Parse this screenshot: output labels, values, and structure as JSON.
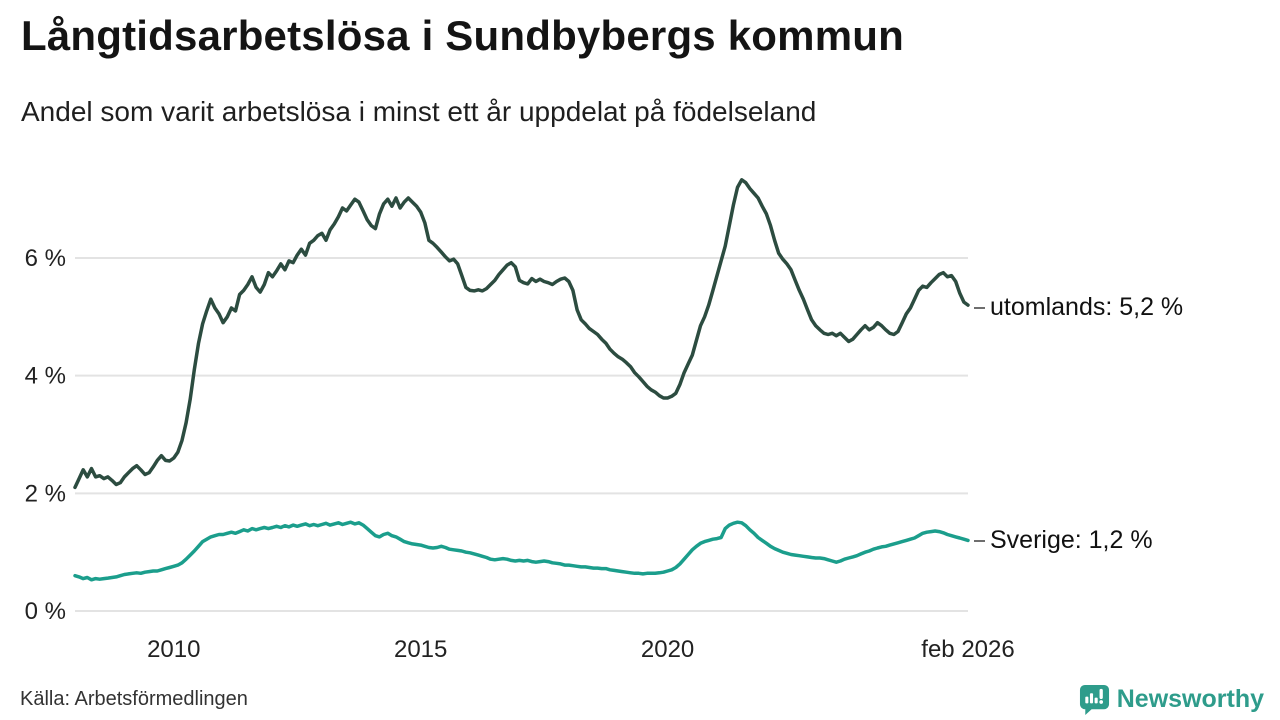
{
  "header": {
    "title": "Långtidsarbetslösa i Sundbybergs kommun",
    "subtitle": "Andel som varit arbetslösa i minst ett år uppdelat på födelseland"
  },
  "footer": {
    "source": "Källa: Arbetsförmedlingen",
    "brand": "Newsworthy"
  },
  "series_labels": {
    "utomlands": "utomlands: 5,2 %",
    "sverige": "Sverige: 1,2 %"
  },
  "colors": {
    "utomlands_line": "#2c4c40",
    "sverige_line": "#1b9e8c",
    "brand_teal": "#2e9c8b",
    "gridline": "#e3e3e3",
    "text": "#222222"
  },
  "chart_data": {
    "type": "line",
    "title": "Långtidsarbetslösa i Sundbybergs kommun",
    "subtitle": "Andel som varit arbetslösa i minst ett år uppdelat på födelseland",
    "source": "Källa: Arbetsförmedlingen",
    "x_range": [
      2008.0,
      2026.0833
    ],
    "ylim": [
      0,
      7.5
    ],
    "grid": "horizontal",
    "legend_position": "right-end-labels",
    "x_ticks": [
      {
        "label": "2010",
        "year": 2010
      },
      {
        "label": "2015",
        "year": 2015
      },
      {
        "label": "2020",
        "year": 2020
      },
      {
        "label": "feb 2026",
        "year": 2026.0833
      }
    ],
    "y_ticks": [
      {
        "label": "0 %",
        "value": 0
      },
      {
        "label": "2 %",
        "value": 2
      },
      {
        "label": "4 %",
        "value": 4
      },
      {
        "label": "6 %",
        "value": 6
      }
    ],
    "start_year": 2008,
    "points_per_year": 12,
    "series": [
      {
        "name": "utomlands",
        "color": "#2c4c40",
        "end_label": "utomlands: 5,2 %",
        "last_value": 5.2,
        "values": [
          2.1,
          2.25,
          2.4,
          2.28,
          2.42,
          2.28,
          2.3,
          2.25,
          2.28,
          2.22,
          2.15,
          2.18,
          2.28,
          2.35,
          2.42,
          2.47,
          2.4,
          2.32,
          2.35,
          2.45,
          2.56,
          2.64,
          2.56,
          2.55,
          2.6,
          2.7,
          2.9,
          3.2,
          3.6,
          4.1,
          4.55,
          4.88,
          5.1,
          5.3,
          5.15,
          5.05,
          4.9,
          5.0,
          5.15,
          5.1,
          5.38,
          5.45,
          5.55,
          5.68,
          5.5,
          5.42,
          5.55,
          5.75,
          5.68,
          5.78,
          5.9,
          5.8,
          5.95,
          5.92,
          6.05,
          6.15,
          6.05,
          6.25,
          6.3,
          6.38,
          6.42,
          6.3,
          6.48,
          6.58,
          6.7,
          6.85,
          6.8,
          6.9,
          7.0,
          6.95,
          6.8,
          6.65,
          6.55,
          6.5,
          6.75,
          6.92,
          7.0,
          6.88,
          7.02,
          6.85,
          6.95,
          7.02,
          6.95,
          6.88,
          6.78,
          6.6,
          6.3,
          6.25,
          6.18,
          6.1,
          6.02,
          5.95,
          5.98,
          5.9,
          5.7,
          5.5,
          5.45,
          5.44,
          5.46,
          5.44,
          5.48,
          5.55,
          5.62,
          5.72,
          5.8,
          5.88,
          5.92,
          5.85,
          5.62,
          5.58,
          5.56,
          5.65,
          5.6,
          5.64,
          5.6,
          5.58,
          5.55,
          5.6,
          5.64,
          5.66,
          5.6,
          5.45,
          5.12,
          4.95,
          4.88,
          4.8,
          4.75,
          4.7,
          4.62,
          4.55,
          4.45,
          4.38,
          4.32,
          4.28,
          4.22,
          4.15,
          4.05,
          3.98,
          3.9,
          3.82,
          3.76,
          3.72,
          3.66,
          3.62,
          3.62,
          3.65,
          3.7,
          3.85,
          4.05,
          4.2,
          4.35,
          4.6,
          4.85,
          5.0,
          5.2,
          5.45,
          5.7,
          5.95,
          6.2,
          6.55,
          6.9,
          7.2,
          7.33,
          7.28,
          7.18,
          7.1,
          7.02,
          6.88,
          6.75,
          6.55,
          6.3,
          6.08,
          5.98,
          5.9,
          5.8,
          5.62,
          5.45,
          5.3,
          5.12,
          4.95,
          4.85,
          4.78,
          4.72,
          4.7,
          4.72,
          4.68,
          4.72,
          4.65,
          4.58,
          4.62,
          4.7,
          4.78,
          4.85,
          4.78,
          4.82,
          4.9,
          4.85,
          4.78,
          4.72,
          4.7,
          4.75,
          4.9,
          5.05,
          5.15,
          5.3,
          5.45,
          5.52,
          5.5,
          5.58,
          5.65,
          5.72,
          5.75,
          5.68,
          5.7,
          5.6,
          5.4,
          5.25,
          5.2
        ]
      },
      {
        "name": "Sverige",
        "color": "#1b9e8c",
        "end_label": "Sverige: 1,2 %",
        "last_value": 1.2,
        "values": [
          0.6,
          0.58,
          0.55,
          0.57,
          0.53,
          0.55,
          0.54,
          0.55,
          0.56,
          0.57,
          0.58,
          0.6,
          0.62,
          0.63,
          0.64,
          0.65,
          0.64,
          0.66,
          0.67,
          0.68,
          0.68,
          0.7,
          0.72,
          0.74,
          0.76,
          0.78,
          0.82,
          0.88,
          0.95,
          1.02,
          1.1,
          1.18,
          1.22,
          1.26,
          1.28,
          1.3,
          1.3,
          1.32,
          1.34,
          1.32,
          1.35,
          1.38,
          1.36,
          1.4,
          1.38,
          1.4,
          1.42,
          1.4,
          1.42,
          1.44,
          1.42,
          1.45,
          1.43,
          1.46,
          1.44,
          1.46,
          1.48,
          1.45,
          1.47,
          1.45,
          1.47,
          1.49,
          1.46,
          1.48,
          1.5,
          1.47,
          1.49,
          1.51,
          1.48,
          1.5,
          1.46,
          1.4,
          1.34,
          1.28,
          1.26,
          1.3,
          1.32,
          1.28,
          1.26,
          1.22,
          1.18,
          1.16,
          1.14,
          1.13,
          1.12,
          1.1,
          1.08,
          1.07,
          1.08,
          1.1,
          1.08,
          1.05,
          1.04,
          1.03,
          1.02,
          1.0,
          0.99,
          0.97,
          0.95,
          0.93,
          0.91,
          0.88,
          0.87,
          0.88,
          0.89,
          0.88,
          0.86,
          0.85,
          0.86,
          0.85,
          0.86,
          0.84,
          0.83,
          0.84,
          0.85,
          0.84,
          0.82,
          0.81,
          0.8,
          0.78,
          0.78,
          0.77,
          0.76,
          0.75,
          0.75,
          0.74,
          0.73,
          0.73,
          0.72,
          0.72,
          0.7,
          0.69,
          0.68,
          0.67,
          0.66,
          0.65,
          0.64,
          0.64,
          0.63,
          0.64,
          0.64,
          0.64,
          0.65,
          0.66,
          0.68,
          0.7,
          0.74,
          0.8,
          0.88,
          0.96,
          1.04,
          1.1,
          1.15,
          1.18,
          1.2,
          1.22,
          1.23,
          1.25,
          1.4,
          1.46,
          1.49,
          1.51,
          1.5,
          1.45,
          1.38,
          1.32,
          1.25,
          1.2,
          1.15,
          1.1,
          1.06,
          1.03,
          1.0,
          0.98,
          0.96,
          0.95,
          0.94,
          0.93,
          0.92,
          0.91,
          0.9,
          0.9,
          0.89,
          0.87,
          0.85,
          0.83,
          0.85,
          0.88,
          0.9,
          0.92,
          0.94,
          0.97,
          1.0,
          1.02,
          1.05,
          1.07,
          1.09,
          1.1,
          1.12,
          1.14,
          1.16,
          1.18,
          1.2,
          1.22,
          1.24,
          1.28,
          1.32,
          1.34,
          1.35,
          1.36,
          1.35,
          1.33,
          1.3,
          1.28,
          1.26,
          1.24,
          1.22,
          1.2
        ]
      }
    ]
  }
}
